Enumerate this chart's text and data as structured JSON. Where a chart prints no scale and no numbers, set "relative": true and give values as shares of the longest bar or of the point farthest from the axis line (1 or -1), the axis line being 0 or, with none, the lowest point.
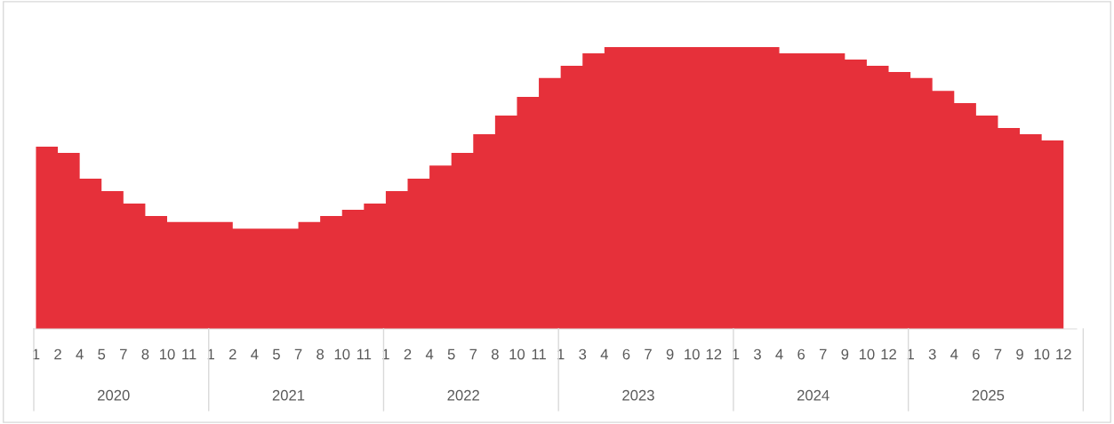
{
  "chart_data": {
    "type": "area",
    "relative": true,
    "color": "#e6303a",
    "grid": false,
    "legend": false,
    "categories": [
      "1",
      "2",
      "4",
      "5",
      "7",
      "8",
      "10",
      "11",
      "1",
      "2",
      "4",
      "5",
      "7",
      "8",
      "10",
      "11",
      "1",
      "2",
      "4",
      "5",
      "7",
      "8",
      "10",
      "11",
      "1",
      "3",
      "4",
      "6",
      "7",
      "9",
      "10",
      "12",
      "1",
      "3",
      "4",
      "6",
      "7",
      "9",
      "10",
      "12",
      "1",
      "3",
      "4",
      "6",
      "7",
      "9",
      "10",
      "12"
    ],
    "values": [
      0.647,
      0.625,
      0.533,
      0.489,
      0.445,
      0.401,
      0.379,
      0.379,
      0.379,
      0.356,
      0.356,
      0.356,
      0.379,
      0.401,
      0.423,
      0.445,
      0.489,
      0.533,
      0.58,
      0.625,
      0.691,
      0.757,
      0.823,
      0.89,
      0.934,
      0.978,
      1,
      1,
      1,
      1,
      1,
      1,
      1,
      1,
      0.978,
      0.978,
      0.978,
      0.956,
      0.934,
      0.912,
      0.89,
      0.845,
      0.801,
      0.757,
      0.713,
      0.691,
      0.669,
      0.625
    ],
    "annotations": [
      "2020",
      "2021",
      "2022",
      "2023",
      "2024",
      "2025"
    ]
  }
}
